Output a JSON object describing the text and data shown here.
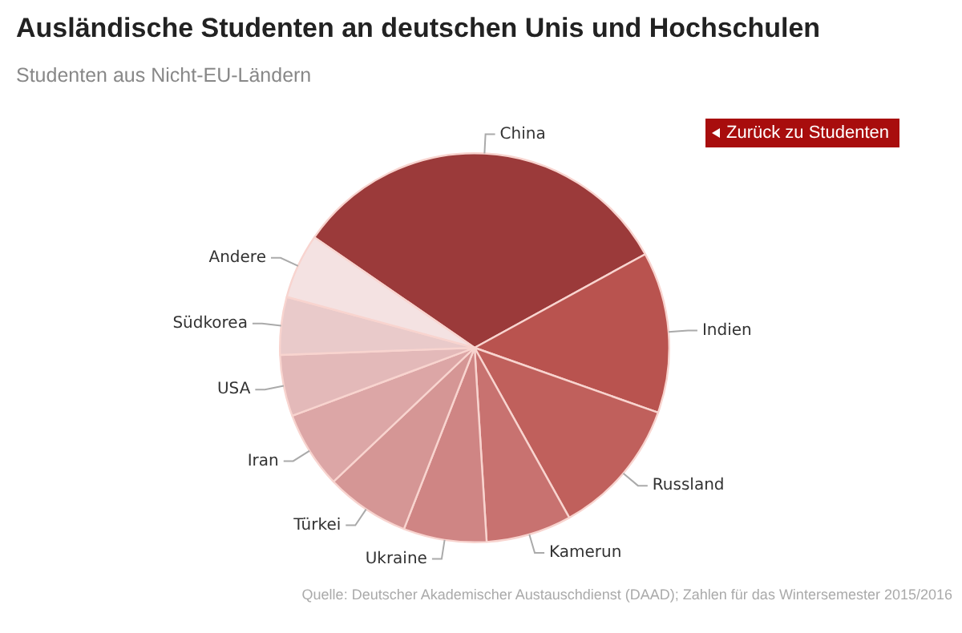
{
  "chart_data": {
    "type": "pie",
    "title": "Ausländische Studenten an deutschen Unis und Hochschulen",
    "subtitle": "Studenten aus Nicht-EU-Ländern",
    "categories": [
      "China",
      "Indien",
      "Russland",
      "Kamerun",
      "Ukraine",
      "Türkei",
      "Iran",
      "USA",
      "Südkorea",
      "Andere"
    ],
    "values": [
      32.4,
      13.4,
      11.5,
      7.1,
      6.9,
      7.0,
      6.4,
      5.1,
      4.8,
      5.4
    ],
    "colors": [
      "#9b3a3a",
      "#b9534f",
      "#c0605c",
      "#c87270",
      "#cf8584",
      "#d59695",
      "#dca6a6",
      "#e3b9b9",
      "#e9caca",
      "#f4e2e2"
    ],
    "legend": false,
    "annotations": [
      "Zurück zu Studenten",
      "Quelle: Deutscher Akademischer Austauschdienst (DAAD); Zahlen für das Wintersemester 2015/2016"
    ]
  }
}
